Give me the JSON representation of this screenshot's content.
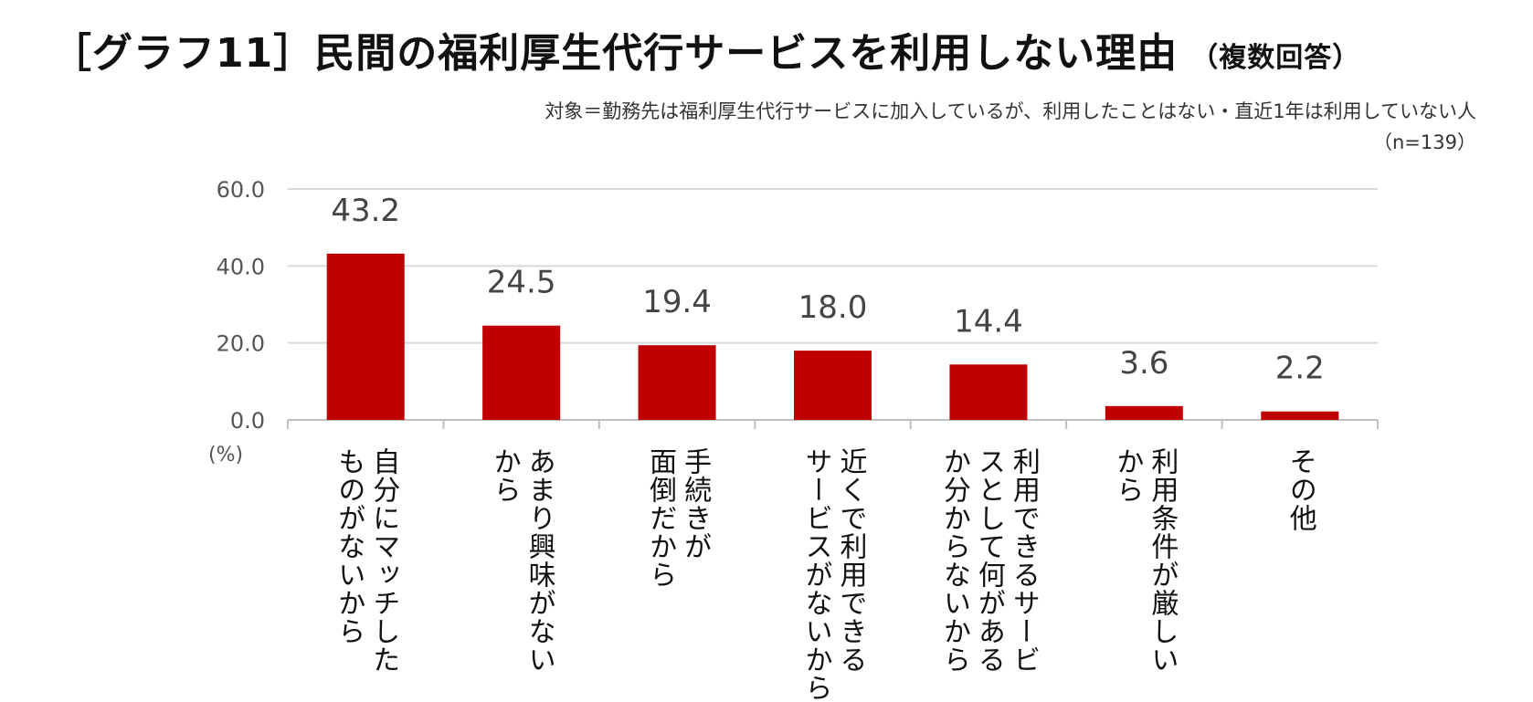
{
  "title": "［グラフ11］民間の福利厚生代行サービスを利用しない理由",
  "title_note": "（複数回答）",
  "subtitle": "対象＝勤務先は福利厚生代行サービスに加入しているが、利用したことはない・直近1年は利用していない人",
  "sample_size": "（n=139）",
  "colors": {
    "bar": "#c00000",
    "grid": "#d9d9d9",
    "axis": "#bfbfbf"
  },
  "chart_data": {
    "type": "bar",
    "ylabel": "(%)",
    "ylim": [
      0,
      60
    ],
    "yticks": [
      "0.0",
      "20.0",
      "40.0",
      "60.0"
    ],
    "grid": true,
    "categories": [
      "自分にマッチした\nものがないから",
      "あまり興味がない\nから",
      "手続きが\n面倒だから",
      "近くで利用できる\nサービスがないから",
      "利用できるサービ\nスとして何がある\nか分からないから",
      "利用条件が厳しい\nから",
      "その他"
    ],
    "values": [
      43.2,
      24.5,
      19.4,
      18.0,
      14.4,
      3.6,
      2.2
    ],
    "value_labels": [
      "43.2",
      "24.5",
      "19.4",
      "18.0",
      "14.4",
      "3.6",
      "2.2"
    ]
  }
}
